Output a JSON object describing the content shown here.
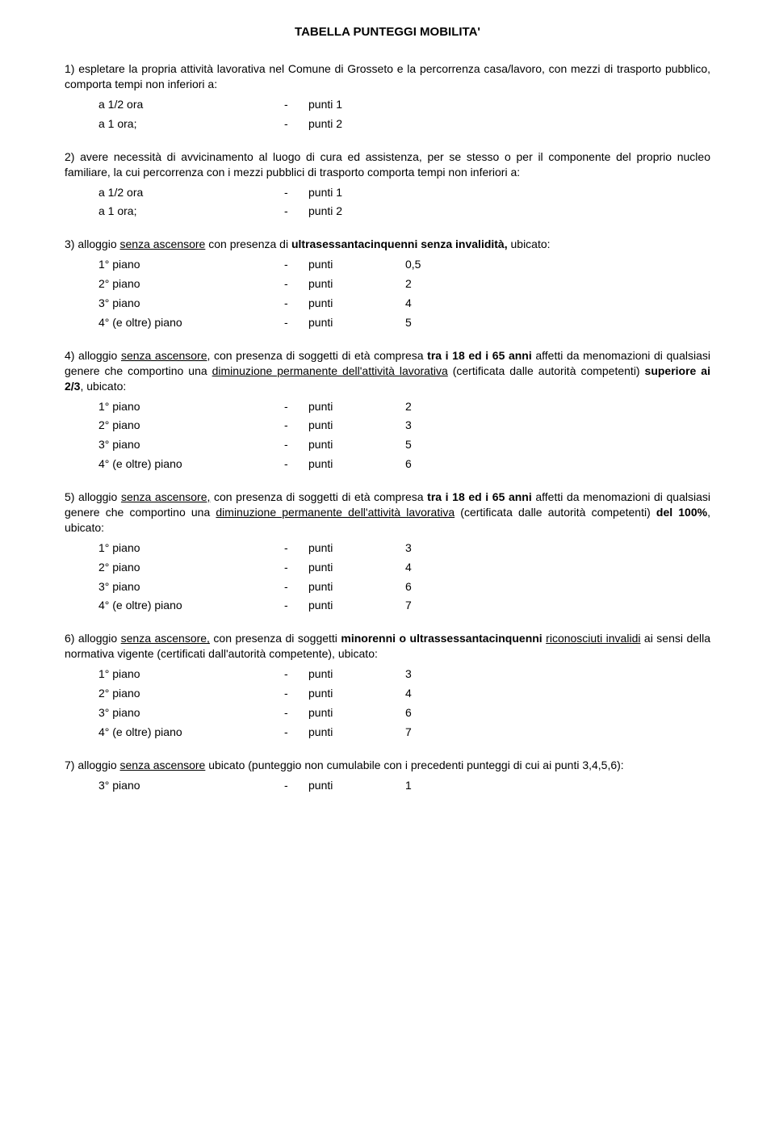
{
  "title": "TABELLA PUNTEGGI MOBILITA'",
  "s1": {
    "text": "1) espletare la propria attività lavorativa nel Comune di Grosseto e la percorrenza casa/lavoro, con mezzi di trasporto pubblico, comporta tempi non inferiori a:",
    "rows": [
      {
        "c1": "a 1/2 ora",
        "c2": "-",
        "c3": "punti 1",
        "c4": ""
      },
      {
        "c1": "a 1 ora;",
        "c2": "-",
        "c3": "punti 2",
        "c4": ""
      }
    ]
  },
  "s2": {
    "text": "2) avere necessità di avvicinamento al luogo di cura ed assistenza, per se stesso o per il componente del proprio nucleo familiare, la cui percorrenza con i mezzi pubblici di trasporto comporta tempi non inferiori a:",
    "rows": [
      {
        "c1": "a 1/2 ora",
        "c2": "-",
        "c3": "punti 1",
        "c4": ""
      },
      {
        "c1": "a 1 ora;",
        "c2": "-",
        "c3": "punti 2",
        "c4": ""
      }
    ]
  },
  "s3": {
    "pre": "3) alloggio ",
    "u1": "senza ascensore",
    "mid": " con presenza di ",
    "b1": "ultrasessantacinquenni senza invalidità,",
    "post": " ubicato:",
    "rows": [
      {
        "c1": "1° piano",
        "c2": "-",
        "c3": "punti",
        "c4": "0,5"
      },
      {
        "c1": "2° piano",
        "c2": "-",
        "c3": "punti",
        "c4": "2"
      },
      {
        "c1": "3° piano",
        "c2": "-",
        "c3": "punti",
        "c4": "4"
      },
      {
        "c1": "4° (e oltre) piano",
        "c2": "-",
        "c3": "punti",
        "c4": "5"
      }
    ]
  },
  "s4": {
    "pre": "4) alloggio ",
    "u1": "senza ascensore,",
    "mid1": "  con presenza di soggetti di età compresa ",
    "b1": "tra i 18 ed i 65 anni",
    "mid2": " affetti da menomazioni di qualsiasi genere che comportino una ",
    "u2": "diminuzione permanente dell'attività lavorativa",
    "mid3": " (certificata dalle autorità competenti) ",
    "b2": "superiore ai 2/3",
    "post": ", ubicato:",
    "rows": [
      {
        "c1": "1° piano",
        "c2": "-",
        "c3": "punti",
        "c4": "2"
      },
      {
        "c1": "2° piano",
        "c2": "-",
        "c3": "punti",
        "c4": "3"
      },
      {
        "c1": "3° piano",
        "c2": "-",
        "c3": "punti",
        "c4": "5"
      },
      {
        "c1": "4° (e oltre) piano",
        "c2": "-",
        "c3": "punti",
        "c4": "6"
      }
    ]
  },
  "s5": {
    "pre": "5) alloggio ",
    "u1": "senza ascensore,",
    "mid1": " con presenza di soggetti di età compresa ",
    "b1": "tra i 18 ed i 65 anni",
    "mid2": " affetti da menomazioni di qualsiasi genere che comportino una ",
    "u2": "diminuzione permanente dell'attività lavorativa",
    "mid3": " (certificata dalle autorità competenti) ",
    "b2": "del 100%",
    "post": ", ubicato:",
    "rows": [
      {
        "c1": "1° piano",
        "c2": "-",
        "c3": "punti",
        "c4": "3"
      },
      {
        "c1": "2° piano",
        "c2": "-",
        "c3": "punti",
        "c4": "4"
      },
      {
        "c1": "3° piano",
        "c2": "-",
        "c3": "punti",
        "c4": "6"
      },
      {
        "c1": "4° (e oltre) piano",
        "c2": "-",
        "c3": "punti",
        "c4": "7"
      }
    ]
  },
  "s6": {
    "pre": "6) alloggio ",
    "u1": "senza ascensore,",
    "mid1": " con presenza di soggetti ",
    "b1": "minorenni o ultrassessantacinquenni",
    "mid2": " ",
    "u2": "riconosciuti invalidi",
    "mid3": " ai sensi della normativa vigente (certificati dall'autorità competente), ubicato:",
    "rows": [
      {
        "c1": "1° piano",
        "c2": "-",
        "c3": "punti",
        "c4": "3"
      },
      {
        "c1": "2° piano",
        "c2": "-",
        "c3": "punti",
        "c4": "4"
      },
      {
        "c1": "3° piano",
        "c2": "-",
        "c3": "punti",
        "c4": "6"
      },
      {
        "c1": "4° (e oltre) piano",
        "c2": "-",
        "c3": "punti",
        "c4": "7"
      }
    ]
  },
  "s7": {
    "pre": "7) alloggio ",
    "u1": "senza ascensore",
    "post": " ubicato (punteggio non cumulabile con i precedenti punteggi di cui ai punti 3,4,5,6):",
    "rows": [
      {
        "c1": "3° piano",
        "c2": "-",
        "c3": "punti",
        "c4": "1"
      }
    ]
  }
}
